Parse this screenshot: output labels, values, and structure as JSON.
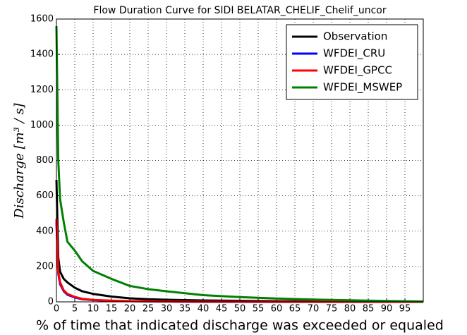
{
  "chart_data": {
    "type": "line",
    "title": "Flow Duration Curve for SIDI BELATAR_CHELIF_Chelif_uncor",
    "x_label": "% of time that indicated discharge was exceeded or equaled",
    "y_label": "Discharge [m³ / s]",
    "x": [
      0,
      0.5,
      1,
      2,
      3,
      5,
      7,
      10,
      15,
      20,
      25,
      30,
      40,
      50,
      60,
      70,
      80,
      90,
      100
    ],
    "series": [
      {
        "name": "Observation",
        "color": "#000000",
        "values": [
          690,
          250,
          170,
          130,
          110,
          80,
          60,
          45,
          30,
          20,
          15,
          12,
          8,
          6,
          4,
          3,
          2,
          1,
          0
        ]
      },
      {
        "name": "WFDEI_CRU",
        "color": "#0000ff",
        "values": [
          450,
          160,
          100,
          60,
          40,
          25,
          15,
          10,
          6,
          4,
          3,
          2,
          1,
          1,
          0.5,
          0.3,
          0.2,
          0.1,
          0
        ]
      },
      {
        "name": "WFDEI_GPCC",
        "color": "#ff0000",
        "values": [
          470,
          170,
          110,
          65,
          45,
          28,
          17,
          11,
          7,
          4,
          3,
          2,
          1,
          1,
          0.5,
          0.3,
          0.2,
          0.1,
          0
        ]
      },
      {
        "name": "WFDEI_MSWEP",
        "color": "#008000",
        "values": [
          1560,
          800,
          580,
          450,
          340,
          290,
          230,
          175,
          130,
          90,
          72,
          60,
          38,
          27,
          19,
          13,
          9,
          5,
          2
        ]
      }
    ],
    "xlim": [
      0,
      100
    ],
    "xticks": [
      0,
      5,
      10,
      15,
      20,
      25,
      30,
      35,
      40,
      45,
      50,
      55,
      60,
      65,
      70,
      75,
      80,
      85,
      90,
      95
    ],
    "ylim": [
      0,
      1600
    ],
    "yticks": [
      0,
      200,
      400,
      600,
      800,
      1000,
      1200,
      1400,
      1600
    ],
    "grid": true,
    "legend": "upper right"
  }
}
